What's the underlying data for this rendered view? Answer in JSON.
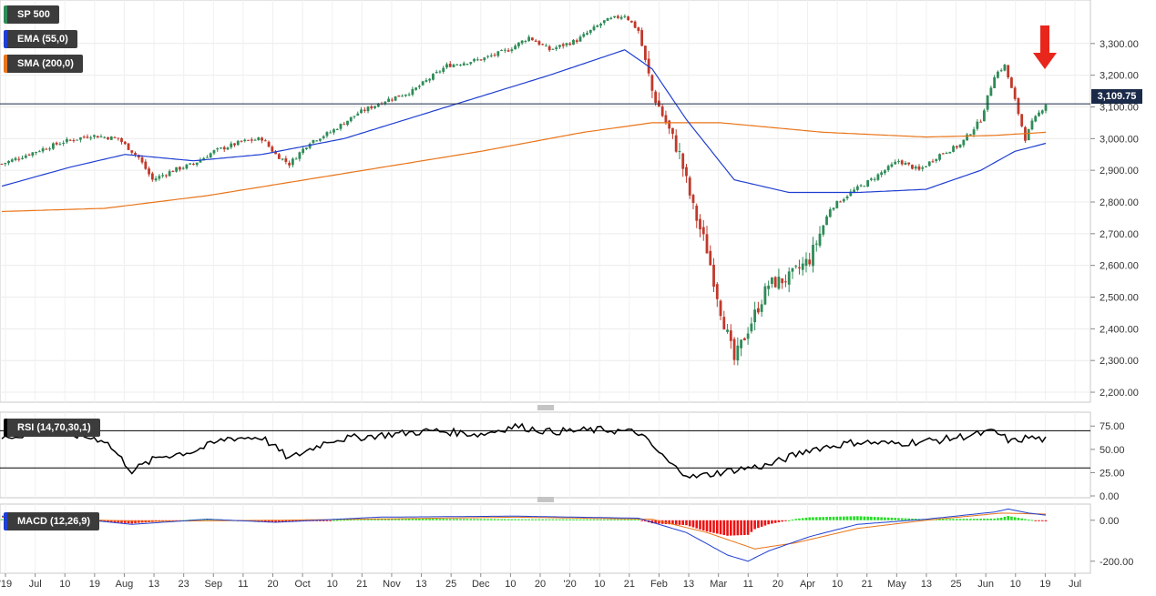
{
  "legend": {
    "main": "SP 500",
    "ema": "EMA (55,0)",
    "sma": "SMA (200,0)",
    "rsi": "RSI (14,70,30,1)",
    "macd": "MACD (12,26,9)"
  },
  "last_price_label": "3,109.75",
  "colors": {
    "up": "#2e8b57",
    "down": "#c0392b",
    "ema": "#1f3fd1",
    "sma": "#e8751a",
    "rsi": "#000000",
    "macd_line": "#1f3fd1",
    "signal_line": "#e8751a",
    "hist_pos": "#22dd22",
    "hist_neg": "#ee1111",
    "arrow": "#e8261c",
    "sp500_tag": "#2e8b57",
    "ema_tag": "#1f3fd1",
    "sma_tag": "#e8751a"
  },
  "icons": [
    "down-arrow-icon",
    "panel-resize-handle-icon"
  ],
  "chart_data": [
    {
      "type": "candlestick",
      "title": "SP 500",
      "y_ticks": [
        "3,300.00",
        "3,200.00",
        "3,100.00",
        "3,000.00",
        "2,900.00",
        "2,800.00",
        "2,700.00",
        "2,600.00",
        "2,500.00",
        "2,400.00",
        "2,300.00",
        "2,200.00"
      ],
      "ylim": [
        2180,
        3420
      ],
      "last_price": 3109.75,
      "x_tick_labels": [
        "'19",
        "Jul",
        "10",
        "19",
        "Aug",
        "13",
        "23",
        "Sep",
        "11",
        "20",
        "Oct",
        "10",
        "21",
        "Nov",
        "13",
        "25",
        "Dec",
        "10",
        "20",
        "'20",
        "10",
        "21",
        "Feb",
        "13",
        "Mar",
        "11",
        "20",
        "Apr",
        "10",
        "21",
        "May",
        "13",
        "25",
        "Jun",
        "10",
        "19",
        "Jul"
      ],
      "series": [
        {
          "name": "SP 500",
          "approx_close_path": [
            [
              0,
              2920
            ],
            [
              10,
              2960
            ],
            [
              18,
              2990
            ],
            [
              26,
              3010
            ],
            [
              34,
              3000
            ],
            [
              40,
              2940
            ],
            [
              44,
              2870
            ],
            [
              50,
              2900
            ],
            [
              56,
              2920
            ],
            [
              62,
              2960
            ],
            [
              70,
              2990
            ],
            [
              76,
              3000
            ],
            [
              80,
              2950
            ],
            [
              84,
              2920
            ],
            [
              90,
              2990
            ],
            [
              96,
              3020
            ],
            [
              104,
              3080
            ],
            [
              112,
              3120
            ],
            [
              120,
              3150
            ],
            [
              130,
              3230
            ],
            [
              140,
              3250
            ],
            [
              148,
              3280
            ],
            [
              154,
              3320
            ],
            [
              160,
              3280
            ],
            [
              168,
              3310
            ],
            [
              176,
              3370
            ],
            [
              182,
              3390
            ],
            [
              186,
              3340
            ],
            [
              190,
              3150
            ],
            [
              194,
              3050
            ],
            [
              198,
              2950
            ],
            [
              202,
              2780
            ],
            [
              206,
              2650
            ],
            [
              210,
              2460
            ],
            [
              214,
              2300
            ],
            [
              218,
              2400
            ],
            [
              224,
              2540
            ],
            [
              230,
              2560
            ],
            [
              236,
              2620
            ],
            [
              242,
              2780
            ],
            [
              248,
              2830
            ],
            [
              254,
              2870
            ],
            [
              258,
              2900
            ],
            [
              262,
              2930
            ],
            [
              268,
              2900
            ],
            [
              274,
              2950
            ],
            [
              280,
              2980
            ],
            [
              286,
              3060
            ],
            [
              290,
              3200
            ],
            [
              293,
              3230
            ],
            [
              296,
              3120
            ],
            [
              299,
              3000
            ],
            [
              301,
              3050
            ],
            [
              305,
              3110
            ]
          ]
        },
        {
          "name": "EMA (55,0)",
          "approx_path": [
            [
              0,
              2850
            ],
            [
              20,
              2910
            ],
            [
              36,
              2950
            ],
            [
              56,
              2930
            ],
            [
              76,
              2950
            ],
            [
              100,
              3000
            ],
            [
              130,
              3100
            ],
            [
              160,
              3200
            ],
            [
              182,
              3280
            ],
            [
              190,
              3220
            ],
            [
              200,
              3060
            ],
            [
              214,
              2870
            ],
            [
              230,
              2830
            ],
            [
              250,
              2830
            ],
            [
              270,
              2840
            ],
            [
              286,
              2900
            ],
            [
              296,
              2960
            ],
            [
              305,
              2985
            ]
          ]
        },
        {
          "name": "SMA (200,0)",
          "approx_path": [
            [
              0,
              2770
            ],
            [
              30,
              2780
            ],
            [
              60,
              2820
            ],
            [
              100,
              2890
            ],
            [
              140,
              2960
            ],
            [
              170,
              3020
            ],
            [
              190,
              3050
            ],
            [
              210,
              3050
            ],
            [
              240,
              3020
            ],
            [
              270,
              3005
            ],
            [
              290,
              3010
            ],
            [
              305,
              3020
            ]
          ]
        }
      ]
    },
    {
      "type": "line",
      "title": "RSI (14,70,30,1)",
      "y_ticks": [
        "75.00",
        "50.00",
        "25.00",
        "0.00"
      ],
      "ylim": [
        0,
        85
      ],
      "reference_lines": [
        70,
        30
      ],
      "series": [
        {
          "name": "RSI (14,70,30,1)",
          "approx_path": [
            [
              0,
              62
            ],
            [
              10,
              68
            ],
            [
              20,
              66
            ],
            [
              30,
              60
            ],
            [
              38,
              27
            ],
            [
              46,
              42
            ],
            [
              56,
              48
            ],
            [
              66,
              62
            ],
            [
              76,
              63
            ],
            [
              84,
              40
            ],
            [
              96,
              60
            ],
            [
              110,
              65
            ],
            [
              126,
              70
            ],
            [
              140,
              66
            ],
            [
              150,
              75
            ],
            [
              160,
              69
            ],
            [
              176,
              71
            ],
            [
              186,
              68
            ],
            [
              196,
              32
            ],
            [
              202,
              20
            ],
            [
              214,
              28
            ],
            [
              224,
              33
            ],
            [
              236,
              50
            ],
            [
              250,
              58
            ],
            [
              260,
              56
            ],
            [
              274,
              60
            ],
            [
              290,
              69
            ],
            [
              295,
              58
            ],
            [
              300,
              63
            ],
            [
              305,
              60
            ]
          ]
        }
      ]
    },
    {
      "type": "line",
      "title": "MACD (12,26,9)",
      "y_ticks": [
        "0.00",
        "-200.00"
      ],
      "ylim": [
        -250,
        70
      ],
      "series": [
        {
          "name": "MACD (12,26,9)",
          "approx_path": [
            [
              0,
              20
            ],
            [
              20,
              10
            ],
            [
              38,
              -20
            ],
            [
              60,
              5
            ],
            [
              80,
              -10
            ],
            [
              110,
              15
            ],
            [
              150,
              20
            ],
            [
              186,
              10
            ],
            [
              200,
              -60
            ],
            [
              212,
              -170
            ],
            [
              218,
              -200
            ],
            [
              224,
              -150
            ],
            [
              236,
              -80
            ],
            [
              250,
              -20
            ],
            [
              270,
              5
            ],
            [
              290,
              40
            ],
            [
              294,
              55
            ],
            [
              300,
              35
            ],
            [
              305,
              25
            ]
          ]
        },
        {
          "name": "Signal",
          "approx_path": [
            [
              0,
              15
            ],
            [
              40,
              -5
            ],
            [
              80,
              0
            ],
            [
              150,
              15
            ],
            [
              190,
              5
            ],
            [
              206,
              -60
            ],
            [
              220,
              -140
            ],
            [
              232,
              -110
            ],
            [
              250,
              -40
            ],
            [
              270,
              0
            ],
            [
              292,
              35
            ],
            [
              305,
              30
            ]
          ]
        }
      ],
      "histogram_note": "green bars above zero, red bars below zero"
    }
  ]
}
